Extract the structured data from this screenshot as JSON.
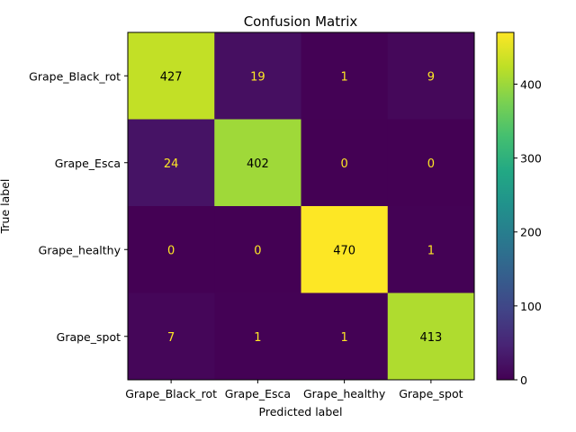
{
  "chart_data": {
    "type": "heatmap",
    "title": "Confusion Matrix",
    "xlabel": "Predicted label",
    "ylabel": "True label",
    "x_categories": [
      "Grape_Black_rot",
      "Grape_Esca",
      "Grape_healthy",
      "Grape_spot"
    ],
    "y_categories": [
      "Grape_Black_rot",
      "Grape_Esca",
      "Grape_healthy",
      "Grape_spot"
    ],
    "matrix": [
      [
        427,
        19,
        1,
        9
      ],
      [
        24,
        402,
        0,
        0
      ],
      [
        0,
        0,
        470,
        1
      ],
      [
        7,
        1,
        1,
        413
      ]
    ],
    "colormap": "viridis",
    "vmin": 0,
    "vmax": 470,
    "colorbar_ticks": [
      "0",
      "100",
      "200",
      "300",
      "400"
    ],
    "grid": false,
    "text_color_dark_cells": "#fde725",
    "text_color_light_cells": "#000000"
  }
}
